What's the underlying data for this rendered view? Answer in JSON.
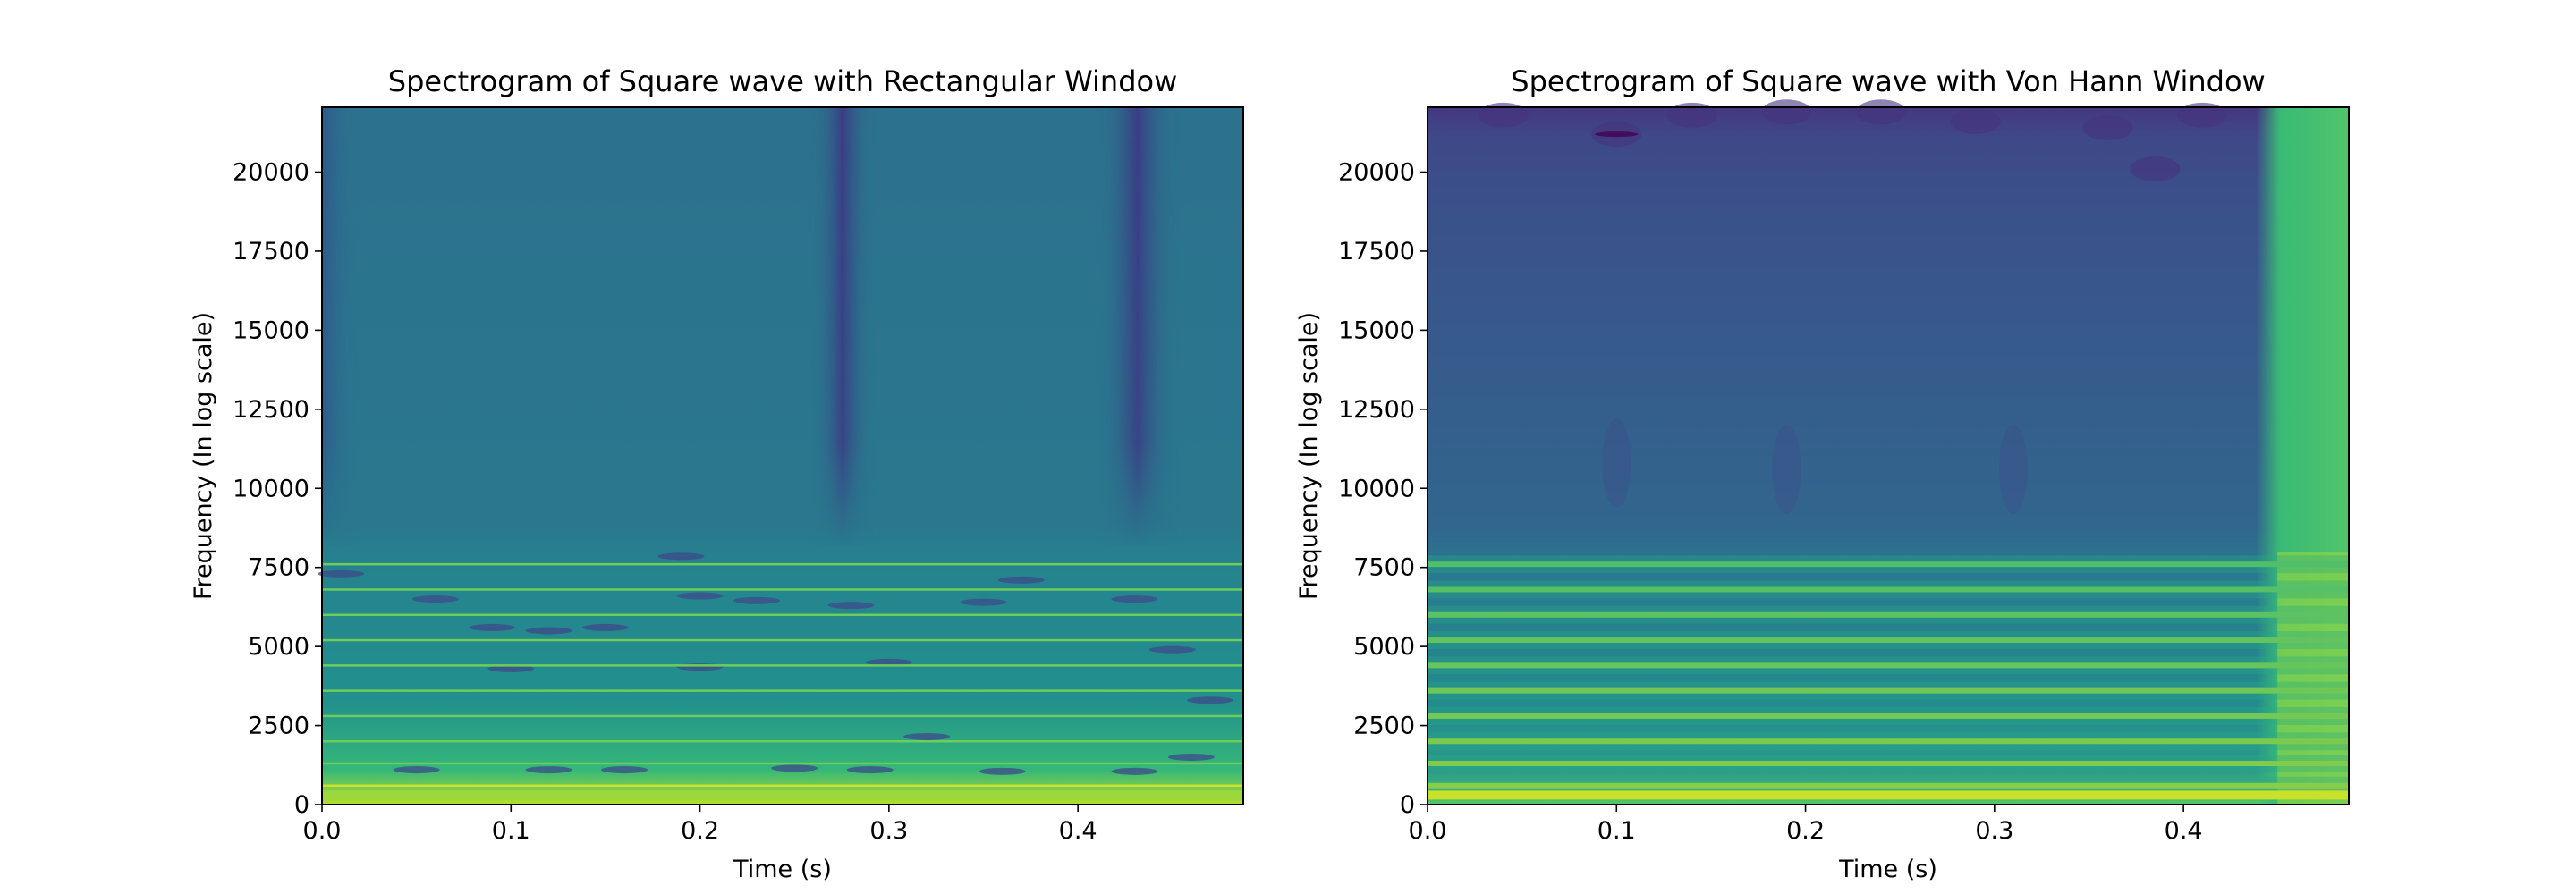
{
  "chart_data": [
    {
      "type": "heatmap",
      "title": "Spectrogram of Square wave with Rectangular Window",
      "xlabel": "Time (s)",
      "ylabel": "Frequency (In log scale)",
      "xlim": [
        0.0,
        0.4875
      ],
      "ylim": [
        0,
        22050
      ],
      "xticks": [
        "0.0",
        "0.1",
        "0.2",
        "0.3",
        "0.4"
      ],
      "xtick_values": [
        0.0,
        0.1,
        0.2,
        0.3,
        0.4
      ],
      "yticks": [
        "0",
        "2500",
        "5000",
        "7500",
        "10000",
        "12500",
        "15000",
        "17500",
        "20000"
      ],
      "ytick_values": [
        0,
        2500,
        5000,
        7500,
        10000,
        12500,
        15000,
        17500,
        20000
      ],
      "colormap": "viridis",
      "harmonic_bands_hz": [
        600,
        1300,
        2000,
        2800,
        3600,
        4400,
        5200,
        6000,
        6800,
        7600
      ],
      "background_level": 0.4,
      "low_freq_level": 0.75,
      "dark_time_stripes_s": [
        0.275,
        0.43
      ]
    },
    {
      "type": "heatmap",
      "title": "Spectrogram of Square wave with Von Hann Window",
      "xlabel": "Time (s)",
      "ylabel": "Frequency (In log scale)",
      "xlim": [
        0.0,
        0.4875
      ],
      "ylim": [
        0,
        22050
      ],
      "xticks": [
        "0.0",
        "0.1",
        "0.2",
        "0.3",
        "0.4"
      ],
      "xtick_values": [
        0.0,
        0.1,
        0.2,
        0.3,
        0.4
      ],
      "yticks": [
        "0",
        "2500",
        "5000",
        "7500",
        "10000",
        "12500",
        "15000",
        "17500",
        "20000"
      ],
      "ytick_values": [
        0,
        2500,
        5000,
        7500,
        10000,
        12500,
        15000,
        17500,
        20000
      ],
      "colormap": "viridis",
      "harmonic_bands_hz": [
        600,
        1300,
        2000,
        2800,
        3600,
        4400,
        5200,
        6000,
        6800,
        7600
      ],
      "background_level": 0.27,
      "low_freq_level": 0.45,
      "bright_region_start_s": 0.445,
      "bright_region_level": 0.72
    }
  ]
}
